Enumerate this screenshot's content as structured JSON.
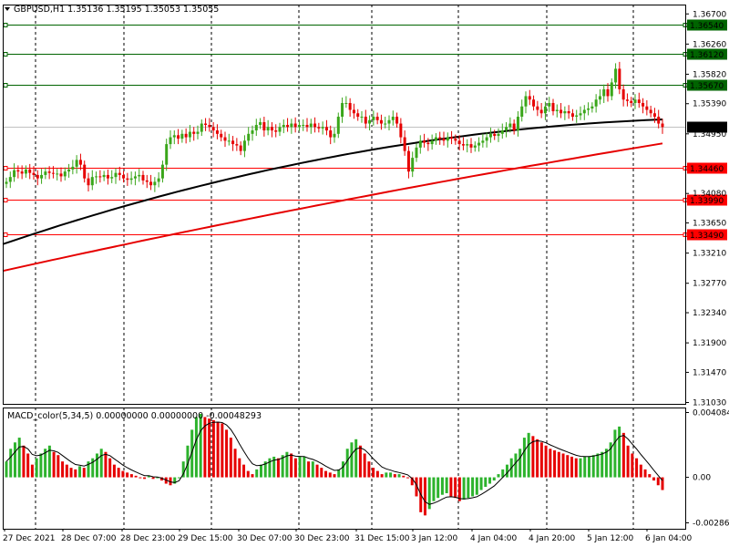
{
  "chart_data": {
    "type": "candlestick",
    "symbol_header": "GBPUSD,H1  1.35136 1.35195 1.35053 1.35055",
    "macd_header": "MACD_color(5,34,5) 0.00000000 0.00000000 -0.00048293",
    "current_price": "1.35055",
    "price_ylim": [
      1.3103,
      1.3675
    ],
    "price_ticks": [
      "1.36700",
      "1.36260",
      "1.35820",
      "1.35390",
      "1.34950",
      "1.34080",
      "1.33650",
      "1.33210",
      "1.32770",
      "1.32340",
      "1.31900",
      "1.31470",
      "1.31030"
    ],
    "macd_ylim": [
      -0.002869,
      0.004084
    ],
    "macd_ticks": [
      "0.0040842",
      "0.00",
      "-0.002869"
    ],
    "x_ticks": [
      "27 Dec 2021",
      "28 Dec 07:00",
      "28 Dec 23:00",
      "29 Dec 15:00",
      "30 Dec 07:00",
      "30 Dec 23:00",
      "31 Dec 15:00",
      "3 Jan 12:00",
      "4 Jan 04:00",
      "4 Jan 20:00",
      "5 Jan 12:00",
      "6 Jan 04:00"
    ],
    "levels": [
      {
        "value": "1.36540",
        "price": 1.3654,
        "color": "#006400",
        "label_bg": "#006400"
      },
      {
        "value": "1.36120",
        "price": 1.3612,
        "color": "#006400",
        "label_bg": "#006400"
      },
      {
        "value": "1.35670",
        "price": 1.3567,
        "color": "#006400",
        "label_bg": "#006400"
      },
      {
        "value": "1.34460",
        "price": 1.3446,
        "color": "#ff0000",
        "label_bg": "#ff0000"
      },
      {
        "value": "1.33990",
        "price": 1.3399,
        "color": "#ff0000",
        "label_bg": "#ff0000"
      },
      {
        "value": "1.33490",
        "price": 1.3349,
        "color": "#ff0000",
        "label_bg": "#ff0000"
      }
    ],
    "close_series": [
      1.3425,
      1.3432,
      1.3442,
      1.344,
      1.3437,
      1.3443,
      1.3438,
      1.3435,
      1.343,
      1.3435,
      1.344,
      1.3438,
      1.3437,
      1.3437,
      1.3433,
      1.344,
      1.3443,
      1.3447,
      1.3457,
      1.345,
      1.343,
      1.342,
      1.3432,
      1.3433,
      1.3432,
      1.3435,
      1.343,
      1.3432,
      1.3438,
      1.3435,
      1.343,
      1.3428,
      1.343,
      1.3433,
      1.3435,
      1.3427,
      1.3425,
      1.342,
      1.3425,
      1.343,
      1.345,
      1.348,
      1.349,
      1.3493,
      1.3488,
      1.3495,
      1.349,
      1.3498,
      1.3495,
      1.3498,
      1.351,
      1.3508,
      1.3505,
      1.35,
      1.3495,
      1.349,
      1.3485,
      1.3485,
      1.348,
      1.3478,
      1.347,
      1.3485,
      1.3495,
      1.35,
      1.3508,
      1.3512,
      1.35,
      1.3505,
      1.35,
      1.3498,
      1.3505,
      1.3508,
      1.3505,
      1.351,
      1.3505,
      1.3508,
      1.3508,
      1.3505,
      1.351,
      1.3505,
      1.3503,
      1.3505,
      1.35,
      1.349,
      1.3495,
      1.352,
      1.354,
      1.354,
      1.353,
      1.3525,
      1.352,
      1.352,
      1.351,
      1.3515,
      1.352,
      1.3515,
      1.351,
      1.351,
      1.3515,
      1.352,
      1.351,
      1.349,
      1.347,
      1.344,
      1.346,
      1.3475,
      1.3485,
      1.3482,
      1.348,
      1.3485,
      1.349,
      1.3488,
      1.3485,
      1.349,
      1.3488,
      1.3485,
      1.348,
      1.3478,
      1.348,
      1.3475,
      1.3478,
      1.3482,
      1.3485,
      1.349,
      1.3495,
      1.3492,
      1.3495,
      1.35,
      1.3505,
      1.351,
      1.35,
      1.352,
      1.3535,
      1.355,
      1.3545,
      1.3535,
      1.353,
      1.3525,
      1.3535,
      1.354,
      1.3528,
      1.353,
      1.3525,
      1.3528,
      1.3525,
      1.352,
      1.3522,
      1.3525,
      1.353,
      1.3532,
      1.3535,
      1.3545,
      1.355,
      1.356,
      1.355,
      1.357,
      1.359,
      1.356,
      1.3545,
      1.3543,
      1.354,
      1.3545,
      1.354,
      1.3535,
      1.353,
      1.3525,
      1.352,
      1.351,
      1.3505
    ],
    "ma_fast": {
      "color": "#000000",
      "start": 1.3334,
      "end": 1.3516
    },
    "ma_slow": {
      "color": "#e60000",
      "start": 1.3295,
      "end": 1.3481
    },
    "macd_histogram": [
      0.001,
      0.0018,
      0.0022,
      0.0025,
      0.002,
      0.0015,
      0.0008,
      0.0012,
      0.0015,
      0.0018,
      0.002,
      0.0016,
      0.0014,
      0.001,
      0.0008,
      0.0006,
      0.0005,
      0.0007,
      0.0006,
      0.001,
      0.0012,
      0.0015,
      0.0018,
      0.0016,
      0.0012,
      0.0008,
      0.0006,
      0.0004,
      0.0003,
      0.0002,
      0.0001,
      0.0,
      -0.0001,
      0.0001,
      -0.0001,
      0.0,
      -0.0002,
      -0.0004,
      -0.0005,
      -0.0004,
      0.0,
      0.001,
      0.002,
      0.003,
      0.0038,
      0.004,
      0.0038,
      0.0037,
      0.0036,
      0.0035,
      0.0034,
      0.003,
      0.0025,
      0.0018,
      0.0012,
      0.0008,
      0.0004,
      0.0002,
      0.0005,
      0.0008,
      0.001,
      0.0012,
      0.0013,
      0.0012,
      0.0014,
      0.0016,
      0.0015,
      0.0012,
      0.0013,
      0.0013,
      0.001,
      0.001,
      0.0008,
      0.0006,
      0.0004,
      0.0003,
      0.0002,
      0.0005,
      0.001,
      0.0018,
      0.0022,
      0.0024,
      0.002,
      0.0015,
      0.001,
      0.0006,
      0.0004,
      0.0002,
      0.0003,
      0.0003,
      0.0002,
      0.0002,
      0.0001,
      0.0,
      -0.0005,
      -0.0012,
      -0.0022,
      -0.0024,
      -0.002,
      -0.0015,
      -0.0013,
      -0.0011,
      -0.001,
      -0.0012,
      -0.0013,
      -0.0015,
      -0.0014,
      -0.0013,
      -0.0012,
      -0.0011,
      -0.0008,
      -0.0006,
      -0.0004,
      -0.0002,
      0.0002,
      0.0005,
      0.0008,
      0.0012,
      0.0015,
      0.0018,
      0.0025,
      0.0028,
      0.0026,
      0.0024,
      0.0022,
      0.002,
      0.0018,
      0.0017,
      0.0016,
      0.0015,
      0.0014,
      0.0013,
      0.0012,
      0.0012,
      0.0013,
      0.0013,
      0.0014,
      0.0015,
      0.0016,
      0.0018,
      0.0022,
      0.003,
      0.0032,
      0.0028,
      0.002,
      0.0015,
      0.0012,
      0.0008,
      0.0005,
      0.0002,
      -0.0002,
      -0.0005,
      -0.0008
    ],
    "colors": {
      "up": "#3aa61a",
      "down": "#e60000",
      "macd_up": "#2db32d",
      "macd_down": "#e60000",
      "grid": "#000000",
      "label_text_light": "#ffffff"
    }
  }
}
